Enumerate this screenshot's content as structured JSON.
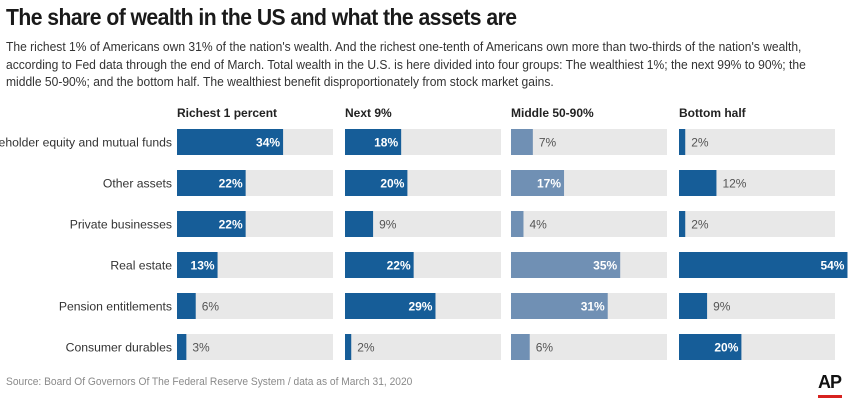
{
  "title": "The share of wealth in the US and what the assets are",
  "subtitle": "The richest 1% of Americans own 31% of the nation's wealth. And the richest one-tenth of Americans own more than two-thirds of the nation's wealth, according to Fed data through the end of March. Total wealth in the U.S. is here divided into four groups: The wealthiest 1%; the next 99% to 90%; the middle 50-90%; and the bottom half. The wealthiest benefit disproportionately from stock market gains.",
  "source": "Source: Board Of Governors Of The Federal Reserve System / data as of March 31, 2020",
  "logo": "AP",
  "colors": {
    "dark_blue": "#165d98",
    "light_blue": "#7090b4",
    "track": "#e8e8e8",
    "text_on_bar": "#ffffff",
    "text_off_bar": "#555555",
    "brand_red": "#d7221f"
  },
  "chart_data": {
    "type": "bar",
    "orientation": "horizontal",
    "layout": "small-multiples",
    "categories": [
      "Shareholder equity and mutual funds",
      "Other assets",
      "Private businesses",
      "Real estate",
      "Pension entitlements",
      "Consumer durables"
    ],
    "series": [
      {
        "name": "Richest 1 percent",
        "values": [
          34,
          22,
          22,
          13,
          6,
          3
        ],
        "color": "#165d98"
      },
      {
        "name": "Next 9%",
        "values": [
          18,
          20,
          9,
          22,
          29,
          2
        ],
        "color": "#165d98"
      },
      {
        "name": "Middle 50-90%",
        "values": [
          7,
          17,
          4,
          35,
          31,
          6
        ],
        "color": "#7090b4"
      },
      {
        "name": "Bottom half",
        "values": [
          2,
          12,
          2,
          54,
          9,
          20
        ],
        "color": "#165d98"
      }
    ],
    "value_suffix": "%",
    "xlim": [
      0,
      100
    ]
  }
}
